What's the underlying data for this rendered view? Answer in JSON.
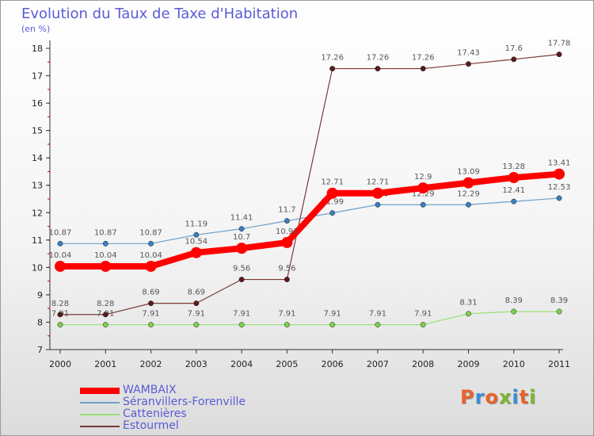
{
  "header": {
    "title": "Evolution du Taux de Taxe d'Habitation",
    "unit": "(en %)"
  },
  "logo": {
    "text": "Proxiti",
    "letter_colors": [
      "#e8622c",
      "#3a8fd4",
      "#e8622c",
      "#7cb62f",
      "#3a8fd4",
      "#e8622c",
      "#7cb62f"
    ]
  },
  "chart_data": {
    "type": "line",
    "title": "Evolution du Taux de Taxe d'Habitation",
    "ylabel": "(en %)",
    "xlabel": "",
    "categories": [
      "2000",
      "2001",
      "2002",
      "2003",
      "2004",
      "2005",
      "2006",
      "2007",
      "2008",
      "2009",
      "2010",
      "2011"
    ],
    "ylim": [
      7,
      18
    ],
    "yticks": [
      7,
      8,
      9,
      10,
      11,
      12,
      13,
      14,
      15,
      16,
      17,
      18
    ],
    "grid": false,
    "legend_position": "bottom-left",
    "series": [
      {
        "name": "WAMBAIX",
        "color": "#ff0000",
        "emphasis": true,
        "values": [
          10.04,
          10.04,
          10.04,
          10.54,
          10.7,
          10.91,
          12.71,
          12.71,
          12.9,
          13.09,
          13.28,
          13.41
        ],
        "labels": [
          "10.04",
          "10.04",
          "10.04",
          "10.54",
          "10.7",
          "10.91",
          "12.71",
          "12.71",
          "12.9",
          "13.09",
          "13.28",
          "13.41"
        ]
      },
      {
        "name": "Séranvillers-Forenville",
        "color": "#6fa0c8",
        "point_color": "#3a7fc0",
        "values": [
          10.87,
          10.87,
          10.87,
          11.19,
          11.41,
          11.7,
          11.99,
          12.29,
          12.29,
          12.29,
          12.41,
          12.53
        ],
        "labels": [
          "10.87",
          "10.87",
          "10.87",
          "11.19",
          "11.41",
          "11.7",
          "11.99",
          "12.29",
          "12.29",
          "12.29",
          "12.41",
          "12.53"
        ]
      },
      {
        "name": "Cattenières",
        "color": "#99e07a",
        "point_color": "#7ccf4e",
        "values": [
          7.91,
          7.91,
          7.91,
          7.91,
          7.91,
          7.91,
          7.91,
          7.91,
          7.91,
          8.31,
          8.39,
          8.39
        ],
        "labels": [
          "7.91",
          "7.91",
          "7.91",
          "7.91",
          "7.91",
          "7.91",
          "7.91",
          "7.91",
          "7.91",
          "8.31",
          "8.39",
          "8.39"
        ]
      },
      {
        "name": "Estourmel",
        "color": "#7a3a3a",
        "point_color": "#5a1a1a",
        "values": [
          8.28,
          8.28,
          8.69,
          8.69,
          9.56,
          9.56,
          17.26,
          17.26,
          17.26,
          17.43,
          17.6,
          17.78
        ],
        "labels": [
          "8.28",
          "8.28",
          "8.69",
          "8.69",
          "9.56",
          "9.56",
          "17.26",
          "17.26",
          "17.26",
          "17.43",
          "17.6",
          "17.78"
        ]
      }
    ]
  }
}
